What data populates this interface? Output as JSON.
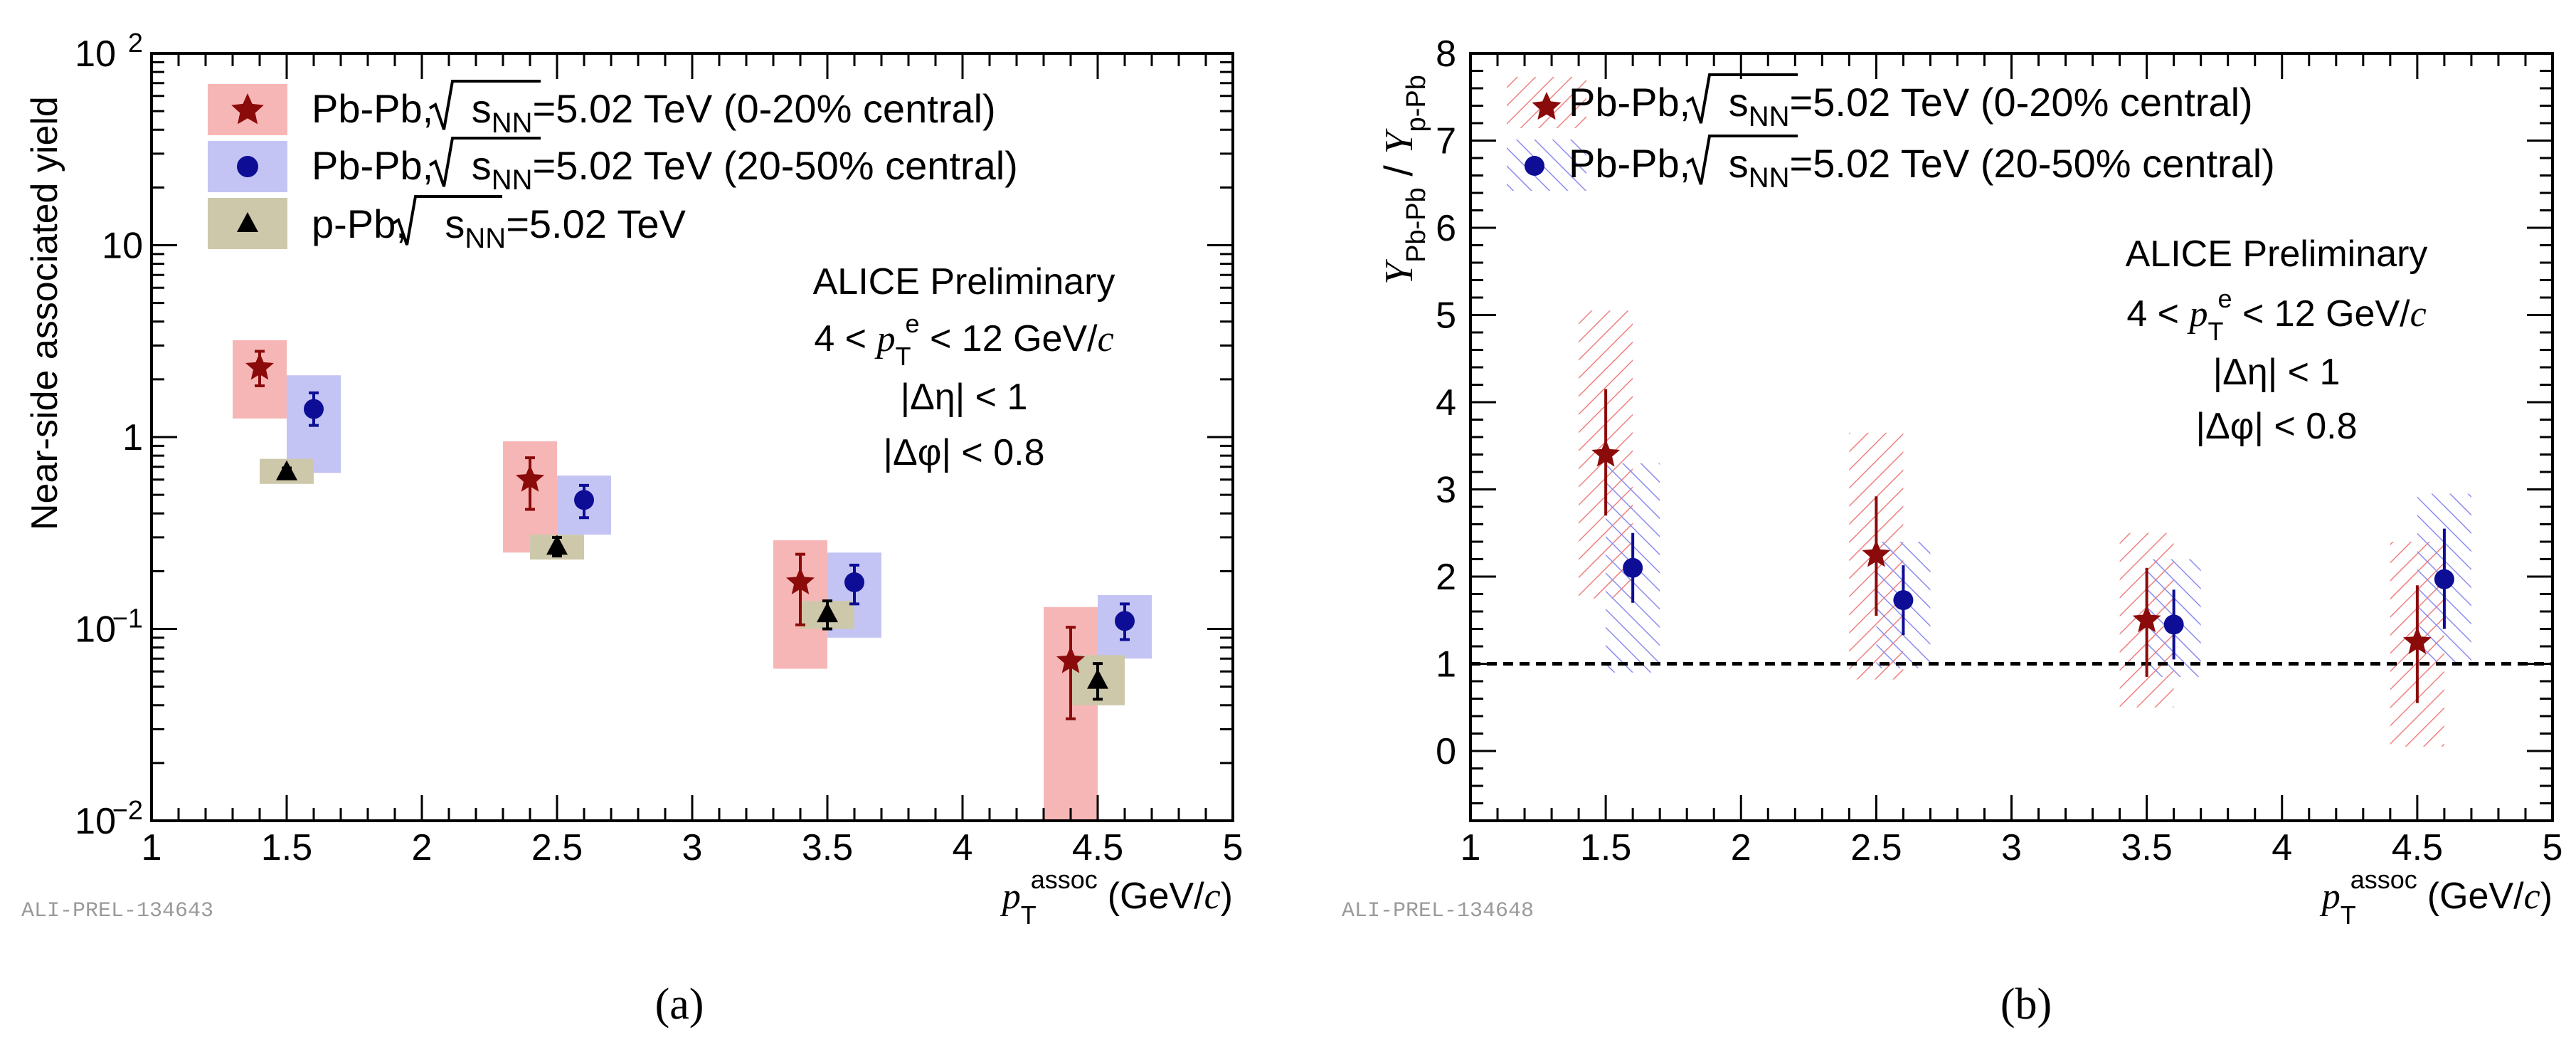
{
  "colors": {
    "pbpb_central": "#8b0a0a",
    "pbpb_central_box": "#f7b6b6",
    "pbpb_semi": "#0d0d96",
    "pbpb_semi_box": "#c4c4f4",
    "ppb": "#000000",
    "ppb_box": "#cdc8aa",
    "hatch_red": "#f08080",
    "hatch_blue": "#8c8cf0"
  },
  "chart_data": [
    {
      "type": "scatter",
      "panel_label": "(a)",
      "ylog": true,
      "ylabel": "Near-side associated yield",
      "xlabel": {
        "p": "p",
        "sub": "T",
        "sup": "assoc",
        "unit": "(GeV/",
        "c": "c",
        "close": ")"
      },
      "xlim": [
        1,
        5
      ],
      "ylim": [
        0.01,
        100
      ],
      "xticks": [
        "1",
        "1.5",
        "2",
        "2.5",
        "3",
        "3.5",
        "4",
        "4.5",
        "5"
      ],
      "yticks": [
        {
          "v": 0.01,
          "base": "10",
          "exp": "−2"
        },
        {
          "v": 0.1,
          "base": "10",
          "exp": "−1"
        },
        {
          "v": 1,
          "base": "1",
          "exp": ""
        },
        {
          "v": 10,
          "base": "10",
          "exp": ""
        },
        {
          "v": 100,
          "base": "10",
          "exp": "2"
        }
      ],
      "legend": [
        {
          "pre": "Pb-Pb, ",
          "root": "s",
          "rootsub": "NN",
          "post": "=5.02 TeV (0-20% central)",
          "marker": "star",
          "series": 0
        },
        {
          "pre": "Pb-Pb, ",
          "root": "s",
          "rootsub": "NN",
          "post": "=5.02 TeV (20-50% central)",
          "marker": "circle",
          "series": 1
        },
        {
          "pre": "p-Pb, ",
          "root": "s",
          "rootsub": "NN",
          "post": "=5.02 TeV",
          "marker": "triangle",
          "series": 2
        }
      ],
      "annotations": {
        "line1": "ALICE Preliminary",
        "line2": {
          "pre": "4 < ",
          "p": "p",
          "sub": "T",
          "sup": "e",
          "post": " < 12 GeV/",
          "c": "c"
        },
        "line3": "|Δη| < 1",
        "line4": "|Δφ| < 0.8"
      },
      "tag": "ALI-PREL-134643",
      "series": [
        {
          "name": "Pb-Pb 0-20% central",
          "marker": "star",
          "x": [
            1.4,
            2.4,
            3.4,
            4.4
          ],
          "y": [
            2.3,
            0.6,
            0.175,
            0.068
          ],
          "err_lo": [
            1.85,
            0.42,
            0.105,
            0.034
          ],
          "err_hi": [
            2.8,
            0.78,
            0.245,
            0.102
          ],
          "sys_lo": [
            1.25,
            0.25,
            0.062,
            0.01
          ],
          "sys_hi": [
            3.2,
            0.95,
            0.29,
            0.13
          ]
        },
        {
          "name": "Pb-Pb 20-50% central",
          "marker": "circle",
          "x": [
            1.6,
            2.6,
            3.6,
            4.6
          ],
          "y": [
            1.4,
            0.47,
            0.175,
            0.11
          ],
          "err_lo": [
            1.15,
            0.38,
            0.135,
            0.088
          ],
          "err_hi": [
            1.7,
            0.56,
            0.215,
            0.135
          ],
          "sys_lo": [
            0.65,
            0.31,
            0.09,
            0.07
          ],
          "sys_hi": [
            2.1,
            0.63,
            0.25,
            0.15
          ]
        },
        {
          "name": "p-Pb",
          "marker": "triangle",
          "x": [
            1.5,
            2.5,
            3.5,
            4.5
          ],
          "y": [
            0.66,
            0.27,
            0.12,
            0.054
          ],
          "err_lo": [
            0.63,
            0.24,
            0.1,
            0.043
          ],
          "err_hi": [
            0.69,
            0.3,
            0.14,
            0.066
          ],
          "sys_lo": [
            0.57,
            0.23,
            0.1,
            0.04
          ],
          "sys_hi": [
            0.77,
            0.31,
            0.14,
            0.073
          ]
        }
      ]
    },
    {
      "type": "scatter",
      "panel_label": "(b)",
      "ylog": false,
      "ylabel": {
        "y1": "Y",
        "sub1": "Pb-Pb",
        "slash": " / ",
        "y2": "Y",
        "sub2": "p-Pb"
      },
      "xlabel": {
        "p": "p",
        "sub": "T",
        "sup": "assoc",
        "unit": "(GeV/",
        "c": "c",
        "close": ")"
      },
      "xlim": [
        1,
        5
      ],
      "ylim": [
        -0.8,
        8
      ],
      "xticks": [
        "1",
        "1.5",
        "2",
        "2.5",
        "3",
        "3.5",
        "4",
        "4.5",
        "5"
      ],
      "yticks": [
        "0",
        "1",
        "2",
        "3",
        "4",
        "5",
        "6",
        "7",
        "8"
      ],
      "reference_line": 1,
      "legend": [
        {
          "pre": "Pb-Pb, ",
          "root": "s",
          "rootsub": "NN",
          "post": "=5.02 TeV (0-20% central)",
          "marker": "star",
          "series": 0
        },
        {
          "pre": "Pb-Pb, ",
          "root": "s",
          "rootsub": "NN",
          "post": "=5.02 TeV (20-50% central)",
          "marker": "circle",
          "series": 1
        }
      ],
      "annotations": {
        "line1": "ALICE Preliminary",
        "line2": {
          "pre": "4 < ",
          "p": "p",
          "sub": "T",
          "sup": "e",
          "post": " < 12 GeV/",
          "c": "c"
        },
        "line3": "|Δη| < 1",
        "line4": "|Δφ| < 0.8"
      },
      "tag": "ALI-PREL-134648",
      "series": [
        {
          "name": "Pb-Pb 0-20% central",
          "marker": "star",
          "x": [
            1.5,
            2.5,
            3.5,
            4.5
          ],
          "y": [
            3.4,
            2.25,
            1.5,
            1.25
          ],
          "err_lo": [
            2.7,
            1.55,
            0.85,
            0.55
          ],
          "err_hi": [
            4.15,
            2.92,
            2.1,
            1.9
          ],
          "sys_lo": [
            1.75,
            0.82,
            0.5,
            0.05
          ],
          "sys_hi": [
            5.05,
            3.65,
            2.5,
            2.4
          ]
        },
        {
          "name": "Pb-Pb 20-50% central",
          "marker": "circle",
          "x": [
            1.6,
            2.6,
            3.6,
            4.6
          ],
          "y": [
            2.1,
            1.73,
            1.45,
            1.97
          ],
          "err_lo": [
            1.7,
            1.33,
            1.05,
            1.4
          ],
          "err_hi": [
            2.5,
            2.13,
            1.85,
            2.55
          ],
          "sys_lo": [
            0.9,
            0.95,
            0.85,
            1.0
          ],
          "sys_hi": [
            3.3,
            2.4,
            2.2,
            2.95
          ]
        }
      ]
    }
  ]
}
